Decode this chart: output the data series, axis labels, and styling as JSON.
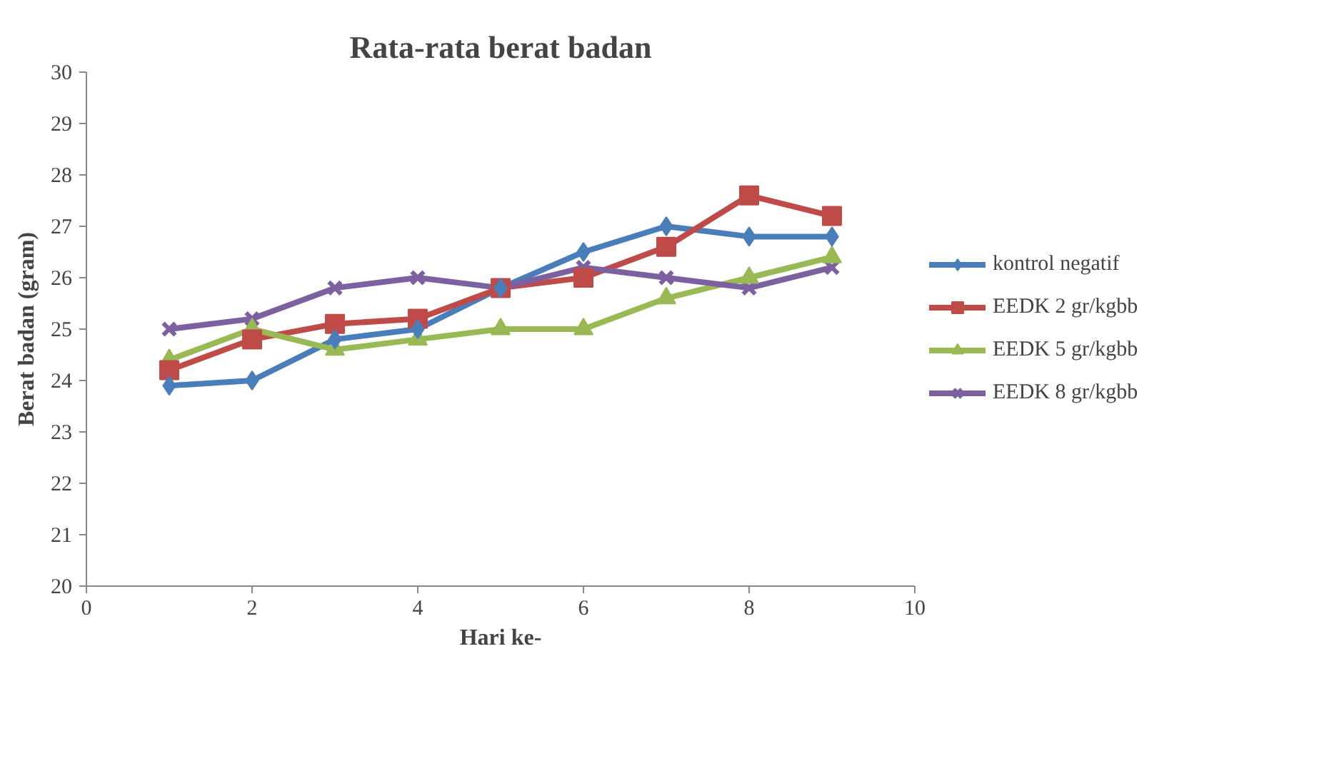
{
  "chart_data": {
    "type": "line",
    "title": "Rata-rata berat badan",
    "xlabel": "Hari ke-",
    "ylabel": "Berat badan (gram)",
    "x": [
      1,
      2,
      3,
      4,
      5,
      6,
      7,
      8,
      9
    ],
    "series": [
      {
        "name": "kontrol negatif",
        "color": "#4a7ebb",
        "marker": "diamond",
        "values": [
          23.9,
          24.0,
          24.8,
          25.0,
          25.8,
          26.5,
          27.0,
          26.8,
          26.8
        ]
      },
      {
        "name": "EEDK 2 gr/kgbb",
        "color": "#be4b48",
        "marker": "square",
        "values": [
          24.2,
          24.8,
          25.1,
          25.2,
          25.8,
          26.0,
          26.6,
          27.6,
          27.2
        ]
      },
      {
        "name": "EEDK 5 gr/kgbb",
        "color": "#98b954",
        "marker": "triangle",
        "values": [
          24.4,
          25.0,
          24.6,
          24.8,
          25.0,
          25.0,
          25.6,
          26.0,
          26.4
        ]
      },
      {
        "name": "EEDK 8 gr/kgbb",
        "color": "#7d60a0",
        "marker": "cross",
        "values": [
          25.0,
          25.2,
          25.8,
          26.0,
          25.8,
          26.2,
          26.0,
          25.8,
          26.2
        ]
      }
    ],
    "xlim": [
      0,
      10
    ],
    "xticks": [
      0,
      2,
      4,
      6,
      8,
      10
    ],
    "ylim": [
      20,
      30
    ],
    "yticks": [
      20,
      21,
      22,
      23,
      24,
      25,
      26,
      27,
      28,
      29,
      30
    ],
    "grid": false,
    "legend": "right",
    "line_style": "solid"
  }
}
